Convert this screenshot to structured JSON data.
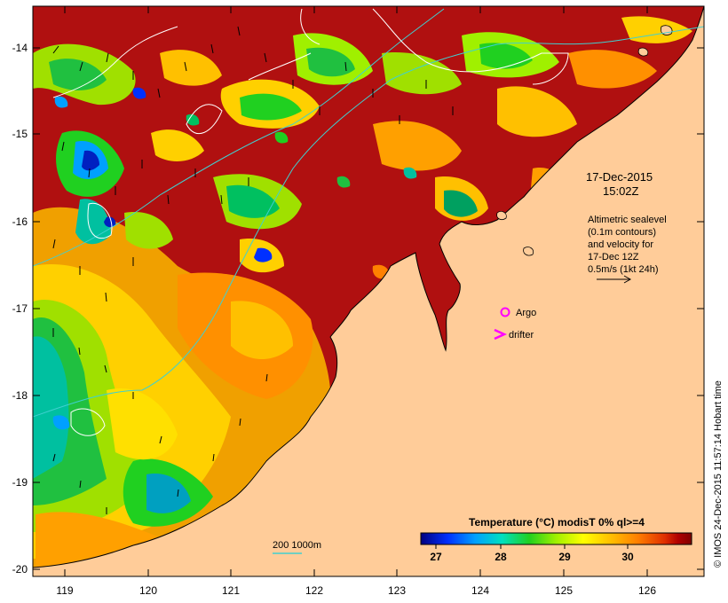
{
  "map": {
    "date_line": "17-Dec-2015",
    "time_line": "15:02Z",
    "altimetry_lines": [
      "Altimetric sealevel",
      "(0.1m contours)",
      "and velocity for",
      "17-Dec 12Z",
      "0.5m/s (1kt 24h)"
    ],
    "legend_argo": "Argo",
    "legend_drifter": "drifter",
    "depth_scale_label": "200  1000m",
    "credit": "© IMOS 24-Dec-2015 11:57:14 Hobart time",
    "lat_ticks": [
      "-14",
      "-15",
      "-16",
      "-17",
      "-18",
      "-19",
      "-20"
    ],
    "lon_ticks": [
      "119",
      "120",
      "121",
      "122",
      "123",
      "124",
      "125",
      "126"
    ],
    "colorbar": {
      "title": "Temperature (°C) modisT 0% ql>=4",
      "ticks": [
        "27",
        "28",
        "29",
        "30"
      ],
      "colors": [
        "#000080",
        "#0030ff",
        "#00a0ff",
        "#00e0c0",
        "#20d020",
        "#a0f000",
        "#ffff00",
        "#ffc000",
        "#ff8000",
        "#e03000",
        "#b00000",
        "#800000"
      ]
    },
    "colors": {
      "land": "#ffcc99",
      "warm_sea": "#b01010",
      "argo": "#ff00ff",
      "contour": "#ffffff",
      "isobath": "#40d0d0"
    }
  }
}
